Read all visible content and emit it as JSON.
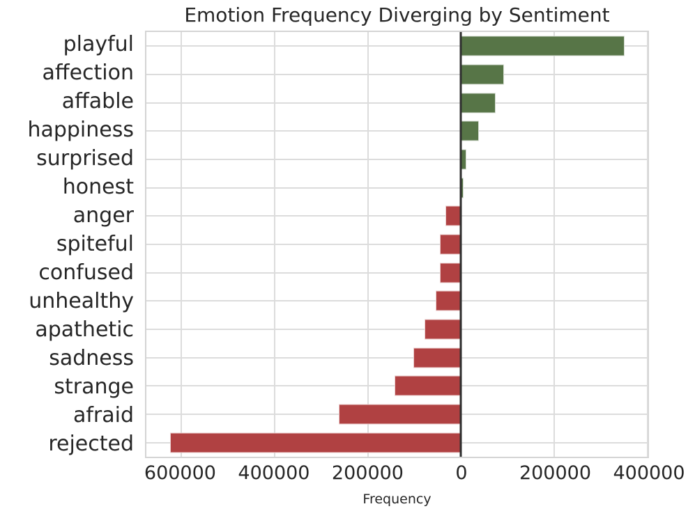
{
  "chart_data": {
    "type": "bar",
    "orientation": "horizontal",
    "title": "Emotion Frequency Diverging by Sentiment",
    "xlabel": "Frequency",
    "ylabel": "",
    "categories": [
      "playful",
      "affection",
      "affable",
      "happiness",
      "surprised",
      "honest",
      "anger",
      "spiteful",
      "confused",
      "unhealthy",
      "apathetic",
      "sadness",
      "strange",
      "afraid",
      "rejected"
    ],
    "values": [
      351000,
      92000,
      74000,
      38000,
      12000,
      6000,
      -34000,
      -46000,
      -45000,
      -55000,
      -78000,
      -103000,
      -143000,
      -263000,
      -624000
    ],
    "xlim": [
      -675000,
      400000
    ],
    "xticks": [
      -600000,
      -400000,
      -200000,
      0,
      200000,
      400000
    ],
    "xtick_labels": [
      "600000",
      "400000",
      "200000",
      "0",
      "200000",
      "400000"
    ],
    "grid": true,
    "zero_line": true,
    "legend": "none",
    "colors": {
      "positive": "#577547",
      "negative": "#b04142",
      "zero_line": "#2e2e2e",
      "gridline": "#dcdcdc",
      "text": "#262626",
      "background": "#ffffff"
    }
  }
}
